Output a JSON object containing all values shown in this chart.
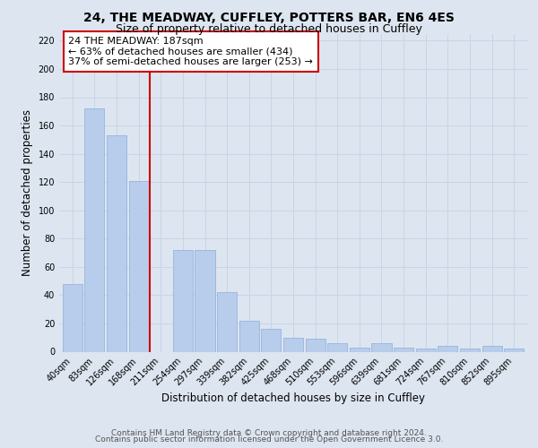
{
  "title": "24, THE MEADWAY, CUFFLEY, POTTERS BAR, EN6 4ES",
  "subtitle": "Size of property relative to detached houses in Cuffley",
  "xlabel": "Distribution of detached houses by size in Cuffley",
  "ylabel": "Number of detached properties",
  "categories": [
    "40sqm",
    "83sqm",
    "126sqm",
    "168sqm",
    "211sqm",
    "254sqm",
    "297sqm",
    "339sqm",
    "382sqm",
    "425sqm",
    "468sqm",
    "510sqm",
    "553sqm",
    "596sqm",
    "639sqm",
    "681sqm",
    "724sqm",
    "767sqm",
    "810sqm",
    "852sqm",
    "895sqm"
  ],
  "values": [
    48,
    172,
    153,
    121,
    0,
    72,
    72,
    42,
    22,
    16,
    10,
    9,
    6,
    3,
    6,
    3,
    2,
    4,
    2,
    4,
    2
  ],
  "bar_color": "#b8cceb",
  "bar_edge_color": "#8aafda",
  "ref_line_color": "#cc0000",
  "annotation_text": "24 THE MEADWAY: 187sqm\n← 63% of detached houses are smaller (434)\n37% of semi-detached houses are larger (253) →",
  "annotation_box_color": "#ffffff",
  "annotation_box_edge": "#cc0000",
  "ylim": [
    0,
    225
  ],
  "yticks": [
    0,
    20,
    40,
    60,
    80,
    100,
    120,
    140,
    160,
    180,
    200,
    220
  ],
  "grid_color": "#c8d4e8",
  "bg_color": "#dde5f0",
  "footer_line1": "Contains HM Land Registry data © Crown copyright and database right 2024.",
  "footer_line2": "Contains public sector information licensed under the Open Government Licence 3.0.",
  "title_fontsize": 10,
  "subtitle_fontsize": 9,
  "axis_label_fontsize": 8.5,
  "tick_fontsize": 7,
  "annotation_fontsize": 8,
  "footer_fontsize": 6.5
}
